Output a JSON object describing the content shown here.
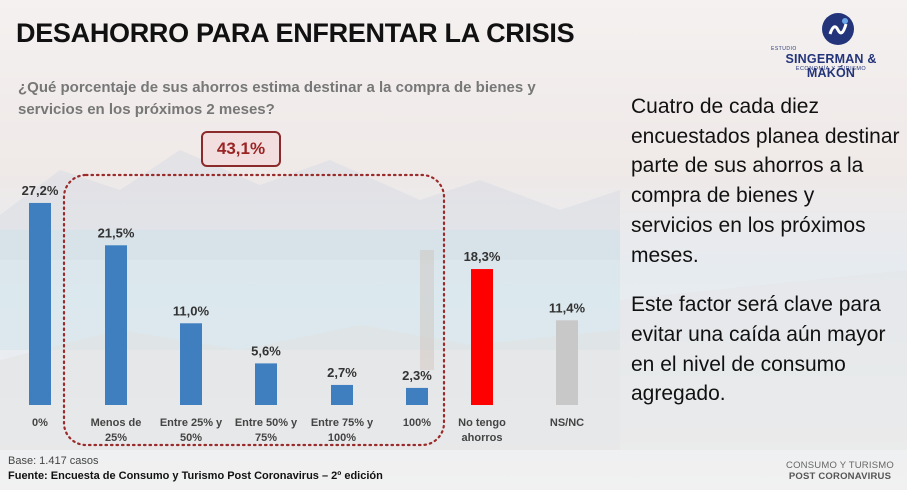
{
  "title": "DESAHORRO PARA ENFRENTAR LA CRISIS",
  "logo": {
    "small": "ESTUDIO",
    "name": "SINGERMAN & MAKÓN",
    "sub": "ECONOMÍA Y TURISMO"
  },
  "question": "¿Qué porcentaje de sus ahorros estima destinar a la compra de bienes y servicios en los próximos 2 meses?",
  "highlight": "43,1%",
  "side_text": {
    "p1": "Cuatro de cada diez encuestados planea destinar parte de sus ahorros a la compra de bienes y servicios en los próximos meses.",
    "p2": "Este factor será clave para evitar una caída aún mayor en el nivel de consumo agregado."
  },
  "base": "Base: 1.417 casos",
  "source": "Fuente: Encuesta de Consumo y Turismo Post Coronavirus – 2º edición",
  "footer": {
    "line1": "CONSUMO Y TURISMO",
    "line2": "POST CORONAVIRUS"
  },
  "chart_data": {
    "type": "bar",
    "title": "",
    "xlabel": "",
    "ylabel": "",
    "ylim": [
      0,
      28
    ],
    "grid": false,
    "categories": [
      [
        "0%"
      ],
      [
        "Menos de",
        "25%"
      ],
      [
        "Entre 25% y",
        "50%"
      ],
      [
        "Entre 50% y",
        "75%"
      ],
      [
        "Entre 75% y",
        "100%"
      ],
      [
        "100%"
      ],
      [
        "No tengo",
        "ahorros"
      ],
      [
        "NS/NC"
      ]
    ],
    "values": [
      27.2,
      21.5,
      11.0,
      5.6,
      2.7,
      2.3,
      18.3,
      11.4
    ],
    "value_labels": [
      "27,2%",
      "21,5%",
      "11,0%",
      "5,6%",
      "2,7%",
      "2,3%",
      "18,3%",
      "11,4%"
    ],
    "colors": [
      "#3f7fc0",
      "#3f7fc0",
      "#3f7fc0",
      "#3f7fc0",
      "#3f7fc0",
      "#3f7fc0",
      "#ff0000",
      "#c8c8c8"
    ],
    "grouped_categories": [
      1,
      2,
      3,
      4,
      5
    ],
    "group_total_label": "43,1%",
    "group_border_color": "#9b2b2b"
  }
}
